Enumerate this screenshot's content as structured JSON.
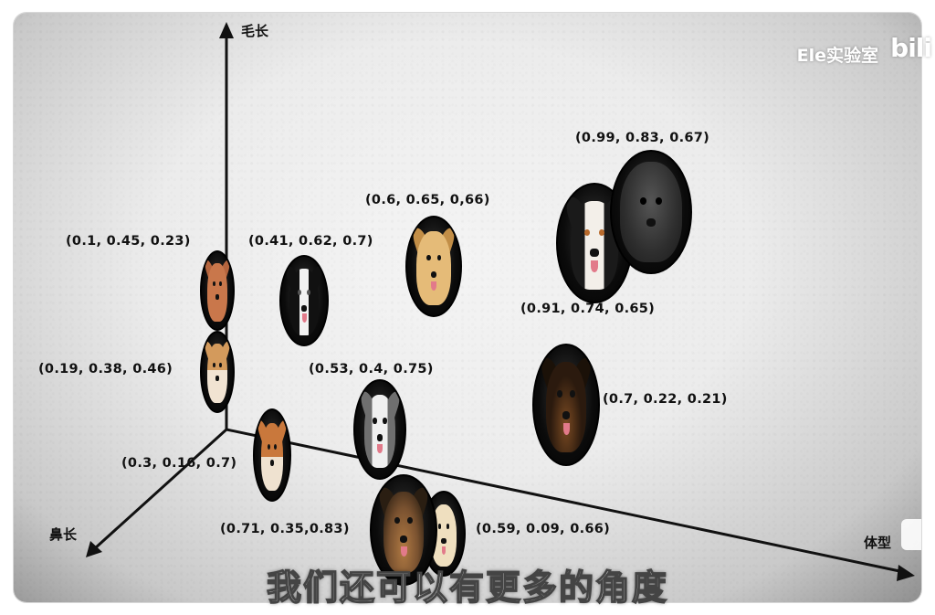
{
  "watermark": {
    "channel": "Ele实验室",
    "logo": "bilibili"
  },
  "axes": {
    "vertical_label": "毛长",
    "depth_label": "鼻长",
    "horizontal_label": "体型"
  },
  "subtitle": "我们还可以有更多的角度",
  "dogs": [
    {
      "label": "(0.1, 0.45, 0.23)",
      "breed_icon": "poodle-icon",
      "color": "#b5653e",
      "face": "#c9774b"
    },
    {
      "label": "(0.19, 0.38, 0.46)",
      "breed_icon": "corgi-icon",
      "color": "#d39a5c",
      "face": "#f1e3d2"
    },
    {
      "label": "(0.41, 0.62, 0.7)",
      "breed_icon": "border-collie-icon",
      "color": "#111111",
      "face": "#f2f2f2"
    },
    {
      "label": "(0.6, 0.65, 0,66)",
      "breed_icon": "golden-retriever-icon",
      "color": "#d9a85f",
      "face": "#e5bb78"
    },
    {
      "label": "(0.99, 0.83, 0.67)",
      "breed_icon": "tibetan-mastiff-icon",
      "color": "#2a2a2a",
      "face": "#3b3b3b"
    },
    {
      "label": "(0.91, 0.74, 0.65)",
      "breed_icon": "bernese-mountain-dog-icon",
      "color": "#1a1a1a",
      "face": "#f3efe9"
    },
    {
      "label": "(0.53, 0.4, 0.75)",
      "breed_icon": "husky-icon",
      "color": "#6f6f6f",
      "face": "#f0f0f0"
    },
    {
      "label": "(0.7, 0.22, 0.21)",
      "breed_icon": "rottweiler-icon",
      "color": "#1b1108",
      "face": "#2b1a0e"
    },
    {
      "label": "(0.3, 0.16, 0.7)",
      "breed_icon": "shiba-inu-icon",
      "color": "#c9783c",
      "face": "#efe2d0"
    },
    {
      "label": "(0.71, 0.35,0.83)",
      "breed_icon": "german-shepherd-icon",
      "color": "#4a3320",
      "face": "#b07a43"
    },
    {
      "label": "(0.59, 0.09, 0.66)",
      "breed_icon": "labrador-icon",
      "color": "#e3cfa8",
      "face": "#efdfbf"
    }
  ]
}
